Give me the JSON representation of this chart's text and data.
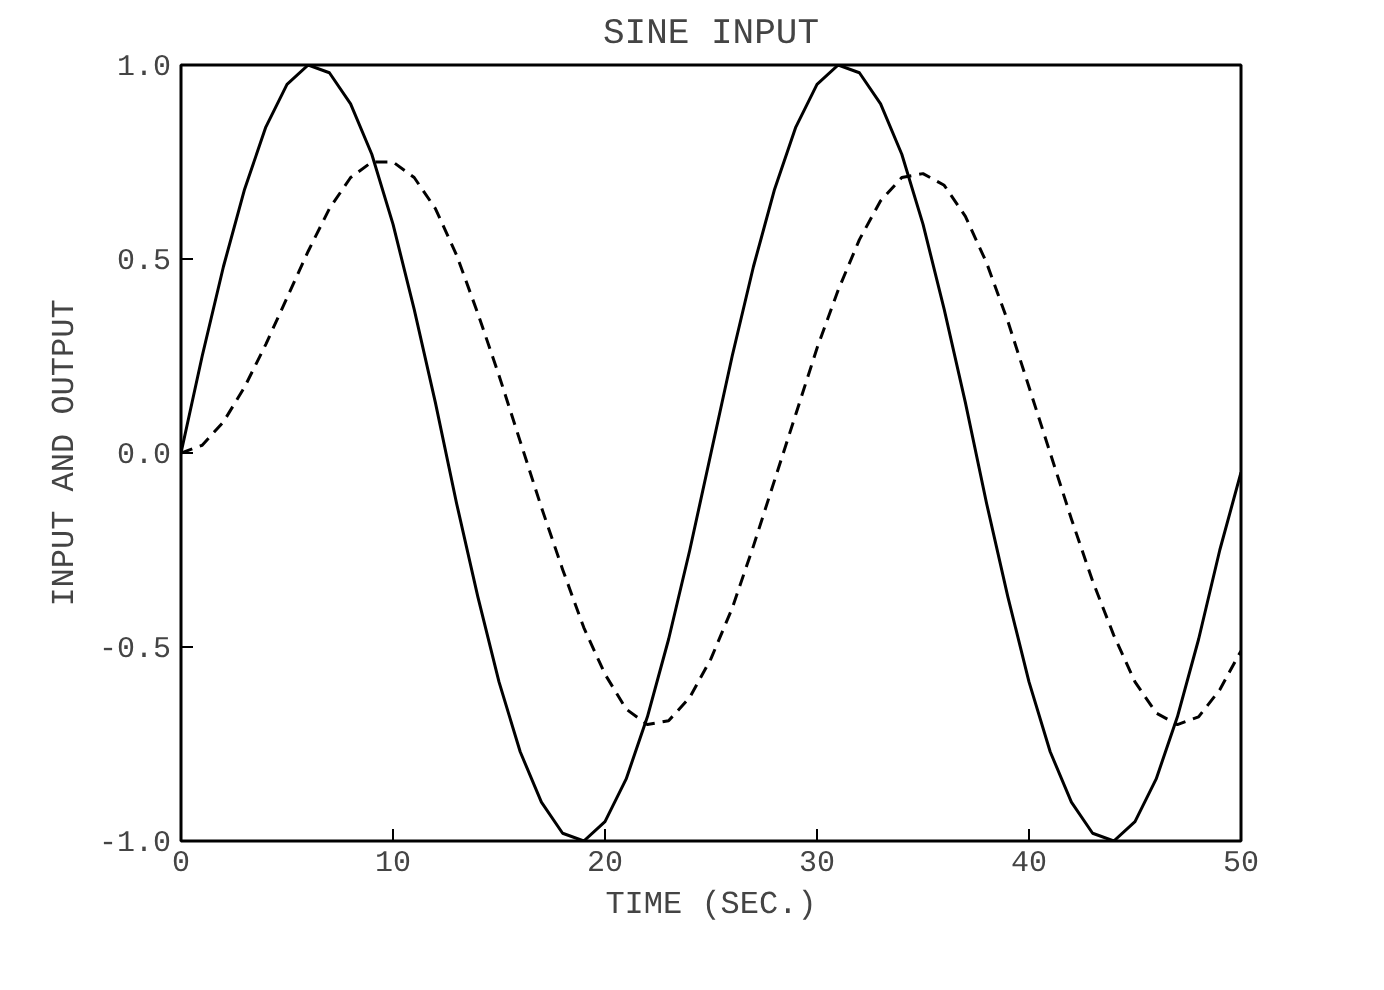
{
  "chart_data": {
    "type": "line",
    "title": "SINE INPUT",
    "xlabel": "TIME (SEC.)",
    "ylabel": "INPUT AND OUTPUT",
    "x": [
      0,
      1,
      2,
      3,
      4,
      5,
      6,
      7,
      8,
      9,
      10,
      11,
      12,
      13,
      14,
      15,
      16,
      17,
      18,
      19,
      20,
      21,
      22,
      23,
      24,
      25,
      26,
      27,
      28,
      29,
      30,
      31,
      32,
      33,
      34,
      35,
      36,
      37,
      38,
      39,
      40,
      41,
      42,
      43,
      44,
      45,
      46,
      47,
      48,
      49,
      50
    ],
    "series": [
      {
        "color": "#000000",
        "line_style": "solid",
        "values": [
          0,
          0.25,
          0.48,
          0.68,
          0.84,
          0.95,
          1.0,
          0.98,
          0.9,
          0.77,
          0.59,
          0.37,
          0.13,
          -0.13,
          -0.37,
          -0.59,
          -0.77,
          -0.9,
          -0.98,
          -1.0,
          -0.95,
          -0.84,
          -0.68,
          -0.48,
          -0.25,
          0,
          0.25,
          0.48,
          0.68,
          0.84,
          0.95,
          1.0,
          0.98,
          0.9,
          0.77,
          0.59,
          0.37,
          0.13,
          -0.13,
          -0.37,
          -0.59,
          -0.77,
          -0.9,
          -0.98,
          -1.0,
          -0.95,
          -0.84,
          -0.68,
          -0.48,
          -0.25,
          -0.05
        ]
      },
      {
        "color": "#000000",
        "line_style": "dashed",
        "values": [
          0,
          0.02,
          0.08,
          0.17,
          0.28,
          0.4,
          0.52,
          0.63,
          0.71,
          0.75,
          0.75,
          0.71,
          0.63,
          0.51,
          0.36,
          0.2,
          0.03,
          -0.14,
          -0.3,
          -0.45,
          -0.57,
          -0.66,
          -0.7,
          -0.69,
          -0.63,
          -0.53,
          -0.4,
          -0.24,
          -0.07,
          0.1,
          0.27,
          0.42,
          0.55,
          0.65,
          0.71,
          0.72,
          0.69,
          0.61,
          0.49,
          0.34,
          0.17,
          0.0,
          -0.17,
          -0.33,
          -0.47,
          -0.59,
          -0.67,
          -0.7,
          -0.68,
          -0.61,
          -0.51
        ]
      }
    ],
    "xlim": [
      0,
      50
    ],
    "ylim": [
      -1.0,
      1.0
    ],
    "xticks": [
      0,
      10,
      20,
      30,
      40,
      50
    ],
    "yticks": [
      {
        "value": -1.0,
        "label": "-1.0"
      },
      {
        "value": -0.5,
        "label": "-0.5"
      },
      {
        "value": 0,
        "label": "0.0"
      },
      {
        "value": 0.5,
        "label": "0.5"
      },
      {
        "value": 1.0,
        "label": "1.0"
      }
    ],
    "grid": false
  }
}
